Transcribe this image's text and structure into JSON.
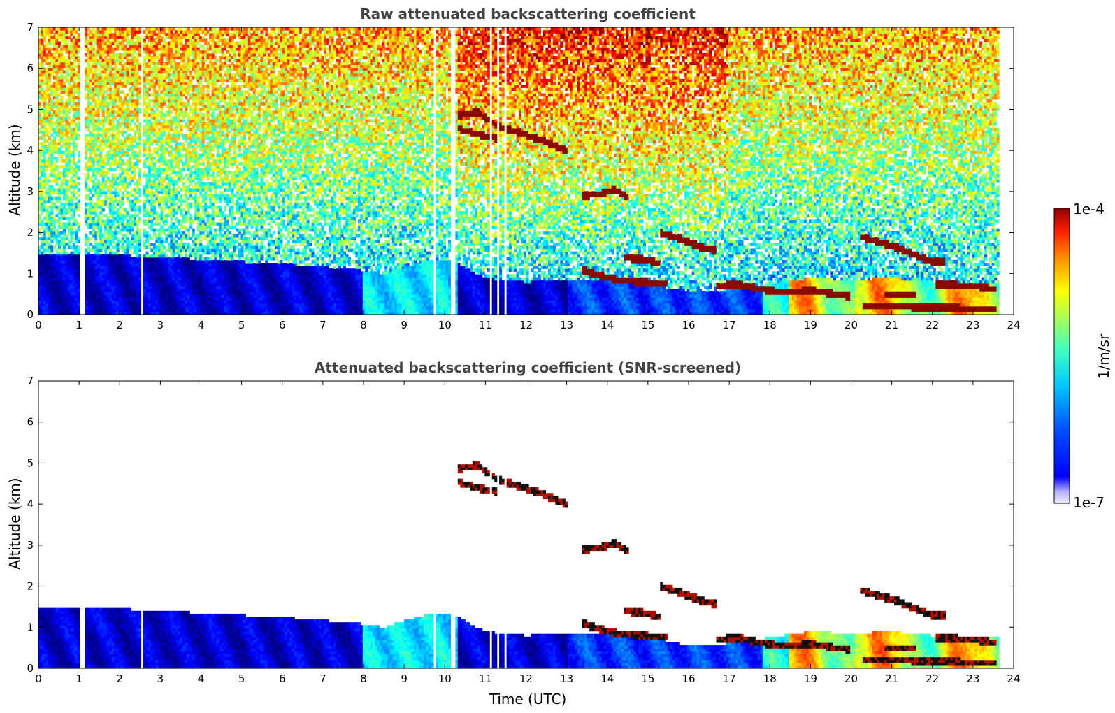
{
  "chart_data": [
    {
      "type": "heatmap",
      "title": "Raw attenuated backscattering coefficient",
      "xlabel": "",
      "ylabel": "Altitude (km)",
      "xlim": [
        0,
        24
      ],
      "ylim": [
        0,
        7
      ],
      "x_ticks": [
        "0",
        "1",
        "2",
        "3",
        "4",
        "5",
        "6",
        "7",
        "8",
        "9",
        "10",
        "11",
        "12",
        "13",
        "14",
        "15",
        "16",
        "17",
        "18",
        "19",
        "20",
        "21",
        "22",
        "23",
        "24"
      ],
      "y_ticks": [
        "0",
        "1",
        "2",
        "3",
        "4",
        "5",
        "6",
        "7"
      ],
      "data_end_time": 23.65,
      "data_gaps": [
        [
          1.0,
          1.12
        ],
        [
          2.52,
          2.56
        ],
        [
          9.7,
          9.8
        ],
        [
          10.12,
          10.25
        ],
        [
          11.1,
          11.15
        ],
        [
          11.3,
          11.35
        ],
        [
          11.45,
          11.5
        ]
      ],
      "layers": [
        {
          "name": "",
          "points": [
            [
              10.3,
              4.85
            ],
            [
              10.8,
              4.95
            ],
            [
              11.3,
              4.6
            ],
            [
              11.8,
              4.45
            ],
            [
              12.4,
              4.25
            ],
            [
              13.0,
              4.0
            ]
          ]
        },
        {
          "name": "",
          "points": [
            [
              10.3,
              4.55
            ],
            [
              10.8,
              4.4
            ],
            [
              11.3,
              4.3
            ]
          ]
        },
        {
          "name": "",
          "points": [
            [
              13.4,
              2.9
            ],
            [
              13.8,
              2.95
            ],
            [
              14.2,
              3.05
            ],
            [
              14.55,
              2.85
            ]
          ]
        },
        {
          "name": "",
          "points": [
            [
              15.3,
              2.0
            ],
            [
              15.8,
              1.85
            ],
            [
              16.3,
              1.65
            ],
            [
              16.7,
              1.55
            ]
          ]
        },
        {
          "name": "",
          "points": [
            [
              14.4,
              1.4
            ],
            [
              14.9,
              1.35
            ],
            [
              15.3,
              1.25
            ]
          ]
        },
        {
          "name": "",
          "points": [
            [
              13.4,
              1.1
            ],
            [
              13.8,
              0.95
            ],
            [
              14.3,
              0.85
            ],
            [
              14.9,
              0.8
            ],
            [
              15.5,
              0.75
            ]
          ]
        },
        {
          "name": "",
          "points": [
            [
              16.7,
              0.7
            ],
            [
              17.2,
              0.75
            ],
            [
              17.8,
              0.62
            ],
            [
              18.4,
              0.55
            ],
            [
              19.0,
              0.6
            ],
            [
              19.6,
              0.5
            ],
            [
              20.0,
              0.45
            ]
          ]
        },
        {
          "name": "",
          "points": [
            [
              20.2,
              1.9
            ],
            [
              20.6,
              1.8
            ],
            [
              21.1,
              1.65
            ],
            [
              21.6,
              1.45
            ],
            [
              22.0,
              1.3
            ],
            [
              22.3,
              1.3
            ]
          ]
        },
        {
          "name": "",
          "points": [
            [
              20.8,
              0.5
            ],
            [
              21.6,
              0.48
            ]
          ]
        },
        {
          "name": "",
          "points": [
            [
              22.1,
              0.75
            ],
            [
              22.6,
              0.72
            ],
            [
              23.0,
              0.7
            ],
            [
              23.6,
              0.62
            ]
          ]
        },
        {
          "name": "",
          "points": [
            [
              20.3,
              0.2
            ],
            [
              21.0,
              0.2
            ],
            [
              22.0,
              0.18
            ],
            [
              23.0,
              0.15
            ],
            [
              23.6,
              0.15
            ]
          ]
        }
      ],
      "boundary_layer_height": [
        [
          0,
          1.5
        ],
        [
          2,
          1.45
        ],
        [
          4,
          1.35
        ],
        [
          6,
          1.25
        ],
        [
          7.8,
          1.1
        ],
        [
          8.5,
          1.0
        ],
        [
          9.5,
          1.3
        ],
        [
          10.2,
          1.3
        ],
        [
          11,
          0.9
        ],
        [
          12,
          0.8
        ],
        [
          13,
          0.85
        ],
        [
          14,
          0.85
        ],
        [
          15,
          0.75
        ],
        [
          16,
          0.55
        ],
        [
          17,
          0.6
        ],
        [
          18,
          0.75
        ],
        [
          19,
          0.9
        ],
        [
          20,
          0.85
        ],
        [
          21,
          0.9
        ],
        [
          22,
          0.8
        ],
        [
          23,
          0.8
        ],
        [
          23.6,
          0.75
        ]
      ],
      "noise_level": "high"
    },
    {
      "type": "heatmap",
      "title": "Attenuated backscattering coefficient (SNR-screened)",
      "xlabel": "Time (UTC)",
      "ylabel": "Altitude (km)",
      "xlim": [
        0,
        24
      ],
      "ylim": [
        0,
        7
      ],
      "x_ticks": [
        "0",
        "1",
        "2",
        "3",
        "4",
        "5",
        "6",
        "7",
        "8",
        "9",
        "10",
        "11",
        "12",
        "13",
        "14",
        "15",
        "16",
        "17",
        "18",
        "19",
        "20",
        "21",
        "22",
        "23",
        "24"
      ],
      "y_ticks": [
        "0",
        "1",
        "2",
        "3",
        "4",
        "5",
        "6",
        "7"
      ],
      "data_end_time": 23.65,
      "data_gaps": [
        [
          1.0,
          1.12
        ],
        [
          2.52,
          2.56
        ],
        [
          9.7,
          9.8
        ],
        [
          10.12,
          10.25
        ],
        [
          11.1,
          11.15
        ],
        [
          11.3,
          11.35
        ],
        [
          11.45,
          11.5
        ]
      ],
      "noise_level": "screened"
    }
  ],
  "colorbar": {
    "label": "1/m/sr",
    "max_label": "1e-4",
    "min_label": "1e-7",
    "colormap": "jet",
    "colors": [
      "#e8e8ff",
      "#aaaaff",
      "#0000ff",
      "#0060ff",
      "#00c0ff",
      "#40ffd0",
      "#a0ff60",
      "#ffff00",
      "#ffa000",
      "#ff3000",
      "#a00000"
    ]
  }
}
